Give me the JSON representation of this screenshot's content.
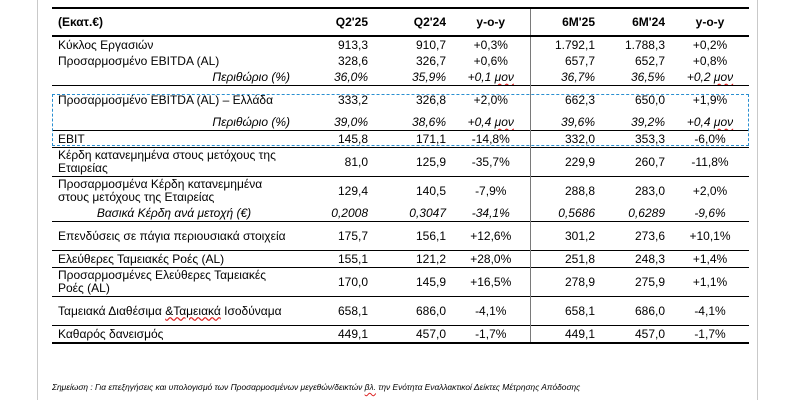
{
  "header": [
    "(Εκατ.€)",
    "Q2'25",
    "Q2'24",
    "y-o-y",
    "6M'25",
    "6M'24",
    "y-o-y"
  ],
  "rows": [
    {
      "label": "Κύκλος Εργασιών",
      "q225": "913,3",
      "q224": "910,7",
      "yoy_q": "+0,3%",
      "m625": "1.792,1",
      "m624": "1.788,3",
      "yoy_m": "+0,2%"
    },
    {
      "label": "Προσαρμοσμένο EBITDA (AL)",
      "q225": "328,6",
      "q224": "326,7",
      "yoy_q": "+0,6%",
      "m625": "657,7",
      "m624": "652,7",
      "yoy_m": "+0,8%"
    },
    {
      "label": "Περιθώριο (%)",
      "q225": "36,0%",
      "q224": "35,9%",
      "yoy_q_num": "+0,1 ",
      "yoy_q_unit": "μον",
      "m625": "36,7%",
      "m624": "36,5%",
      "yoy_m_num": "+0,2 ",
      "yoy_m_unit": "μον"
    },
    {
      "label": "Προσαρμοσμένο EBITDA (AL) – Ελλάδα",
      "q225": "333,2",
      "q224": "326,8",
      "yoy_q": "+2,0%",
      "m625": "662,3",
      "m624": "650,0",
      "yoy_m": "+1,9%"
    },
    {
      "label": "Περιθώριο (%)",
      "q225": "39,0%",
      "q224": "38,6%",
      "yoy_q_num": "+0,4 ",
      "yoy_q_unit": "μον",
      "m625": "39,6%",
      "m624": "39,2%",
      "yoy_m_num": "+0,4 ",
      "yoy_m_unit": "μον"
    },
    {
      "label": "EBIT",
      "q225": "145,8",
      "q224": "171,1",
      "yoy_q": "-14,8%",
      "m625": "332,0",
      "m624": "353,3",
      "yoy_m": "-6,0%"
    },
    {
      "label": "Κέρδη κατανεμημένα στους μετόχους της Εταιρείας",
      "q225": "81,0",
      "q224": "125,9",
      "yoy_q": "-35,7%",
      "m625": "229,9",
      "m624": "260,7",
      "yoy_m": "-11,8%"
    },
    {
      "label": "Προσαρμοσμένα Κέρδη κατανεμημένα στους μετόχους της Εταιρείας",
      "q225": "129,4",
      "q224": "140,5",
      "yoy_q": "-7,9%",
      "m625": "288,8",
      "m624": "283,0",
      "yoy_m": "+2,0%"
    },
    {
      "label": "Βασικά Κέρδη ανά μετοχή (€)",
      "q225": "0,2008",
      "q224": "0,3047",
      "yoy_q": "-34,1%",
      "m625": "0,5686",
      "m624": "0,6289",
      "yoy_m": "-9,6%"
    },
    {
      "label": "Επενδύσεις σε πάγια περιουσιακά στοιχεία",
      "q225": "175,7",
      "q224": "156,1",
      "yoy_q": "+12,6%",
      "m625": "301,2",
      "m624": "273,6",
      "yoy_m": "+10,1%"
    },
    {
      "label": "Ελεύθερες Ταμειακές Ροές (AL)",
      "q225": "155,1",
      "q224": "121,2",
      "yoy_q": "+28,0%",
      "m625": "251,8",
      "m624": "248,3",
      "yoy_m": "+1,4%"
    },
    {
      "label": "Προσαρμοσμένες Ελεύθερες Ταμειακές Ροές (AL)",
      "q225": "170,0",
      "q224": "145,9",
      "yoy_q": "+16,5%",
      "m625": "278,9",
      "m624": "275,9",
      "yoy_m": "+1,1%"
    },
    {
      "label_pre": "Ταμειακά Διαθέσιμα ",
      "label_wavy": "&Ταμειακά",
      "label_post": " Ισοδύναμα",
      "q225": "658,1",
      "q224": "686,0",
      "yoy_q": "-4,1%",
      "m625": "658,1",
      "m624": "686,0",
      "yoy_m": "-4,1%"
    },
    {
      "label": "Καθαρός δανεισμός",
      "q225": "449,1",
      "q224": "457,0",
      "yoy_q": "-1,7%",
      "m625": "449,1",
      "m624": "457,0",
      "yoy_m": "-1,7%"
    }
  ],
  "footnote": {
    "pre": "Σημείωση : Για επεξηγήσεις και υπολογισμό των Προσαρμοσμένων μεγεθών/δεικτών ",
    "wavy": "βλ.",
    "post": " την Ενότητα Εναλλακτικοί Δείκτες Μέτρησης Απόδοσης"
  }
}
